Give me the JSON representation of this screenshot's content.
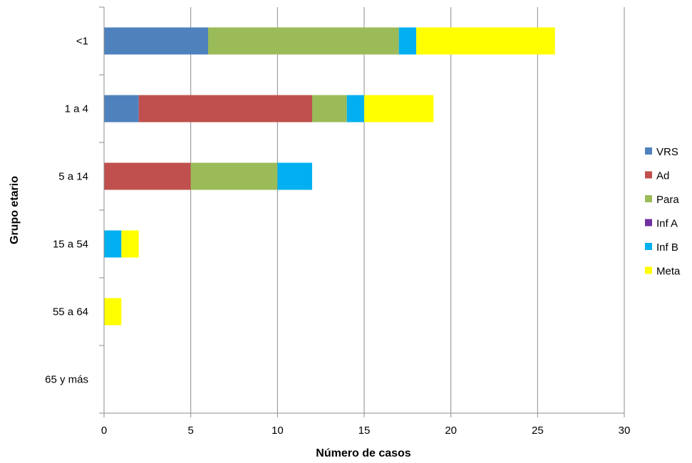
{
  "chart_data": {
    "type": "bar",
    "orientation": "horizontal",
    "stacked": true,
    "title": "",
    "xlabel": "Número de casos",
    "ylabel": "Grupo etario",
    "xlim": [
      0,
      30
    ],
    "xticks": [
      0,
      5,
      10,
      15,
      20,
      25,
      30
    ],
    "grid": "vertical",
    "legend_position": "right",
    "categories": [
      "<1",
      "1 a 4",
      "5 a 14",
      "15 a 54",
      "55 a 64",
      "65 y más"
    ],
    "series": [
      {
        "name": "VRS",
        "color": "#4F81BD",
        "values": [
          6,
          2,
          0,
          0,
          0,
          0
        ]
      },
      {
        "name": "Ad",
        "color": "#C0504D",
        "values": [
          0,
          10,
          5,
          0,
          0,
          0
        ]
      },
      {
        "name": "Para",
        "color": "#9BBB59",
        "values": [
          11,
          2,
          5,
          0,
          0,
          0
        ]
      },
      {
        "name": "Inf A",
        "color": "#7030A0",
        "values": [
          0,
          0,
          0,
          0,
          0,
          0
        ]
      },
      {
        "name": "Inf B",
        "color": "#00B0F0",
        "values": [
          1,
          1,
          2,
          1,
          0,
          0
        ]
      },
      {
        "name": "Meta",
        "color": "#FFFF00",
        "values": [
          8,
          4,
          0,
          1,
          1,
          0
        ]
      }
    ]
  }
}
